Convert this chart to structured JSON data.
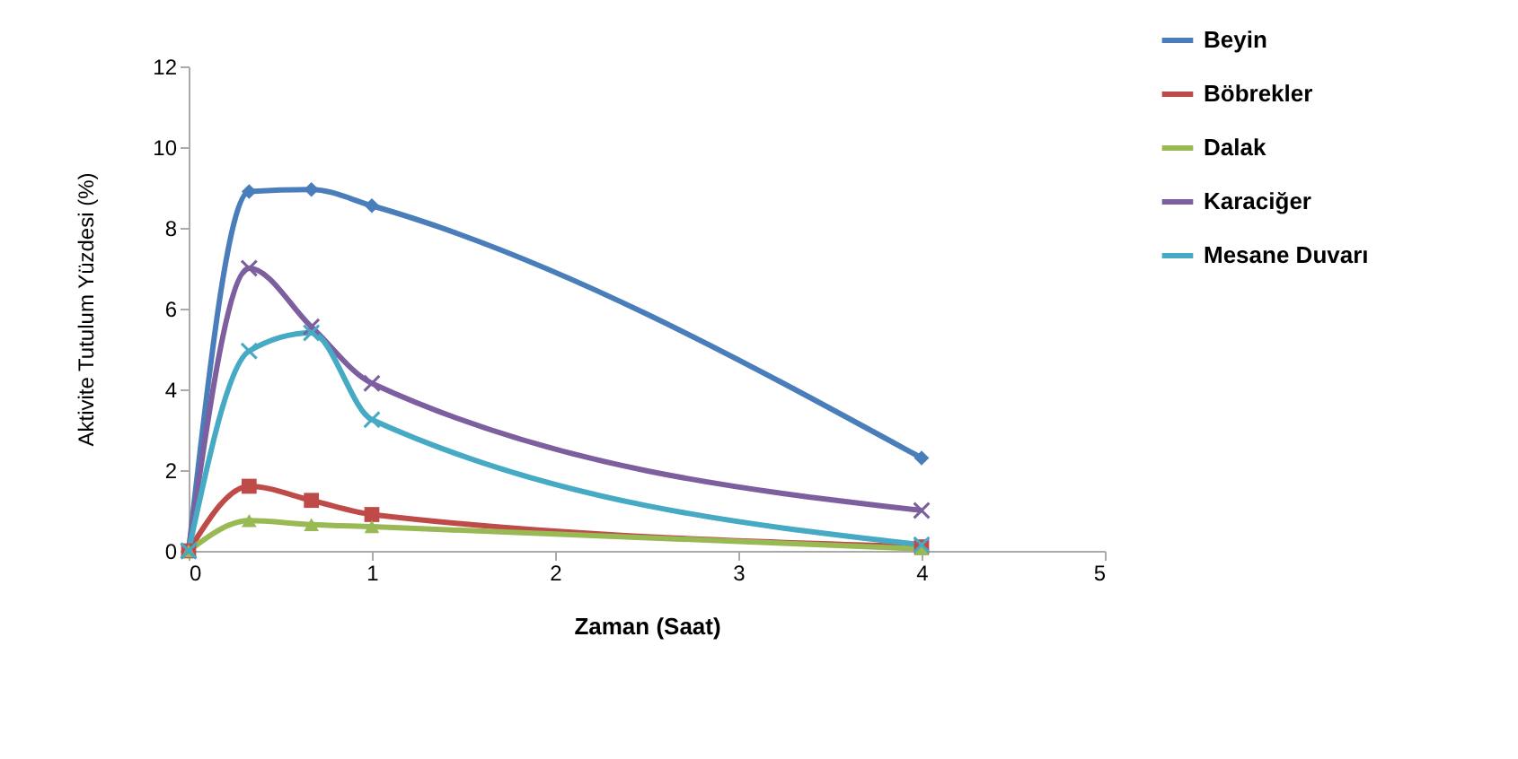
{
  "chart_data": {
    "type": "line",
    "xlabel": "Zaman (Saat)",
    "ylabel": "Aktivite Tutulum Yüzdesi (%)",
    "x": [
      0,
      0.33,
      0.67,
      1,
      4
    ],
    "series": [
      {
        "name": "Beyin",
        "color": "#4a7ebb",
        "marker": "diamond",
        "values": [
          0,
          8.9,
          8.95,
          8.55,
          2.3
        ]
      },
      {
        "name": "Böbrekler",
        "color": "#be4b48",
        "marker": "square",
        "values": [
          0,
          1.6,
          1.25,
          0.9,
          0.1
        ]
      },
      {
        "name": "Dalak",
        "color": "#98b954",
        "marker": "triangle",
        "values": [
          0,
          0.75,
          0.65,
          0.6,
          0.05
        ]
      },
      {
        "name": "Karaciğer",
        "color": "#7d5fa0",
        "marker": "cross",
        "values": [
          0,
          7.0,
          5.55,
          4.15,
          1.0
        ]
      },
      {
        "name": "Mesane Duvarı",
        "color": "#46aac5",
        "marker": "cross",
        "values": [
          0,
          4.95,
          5.4,
          3.25,
          0.15
        ]
      }
    ],
    "xlim": [
      0,
      5
    ],
    "xticks": [
      0,
      1,
      2,
      3,
      4,
      5
    ],
    "ylim": [
      0,
      12
    ],
    "yticks": [
      0,
      2,
      4,
      6,
      8,
      10,
      12
    ],
    "grid": false,
    "legend": "top right",
    "line_style": "solid"
  }
}
